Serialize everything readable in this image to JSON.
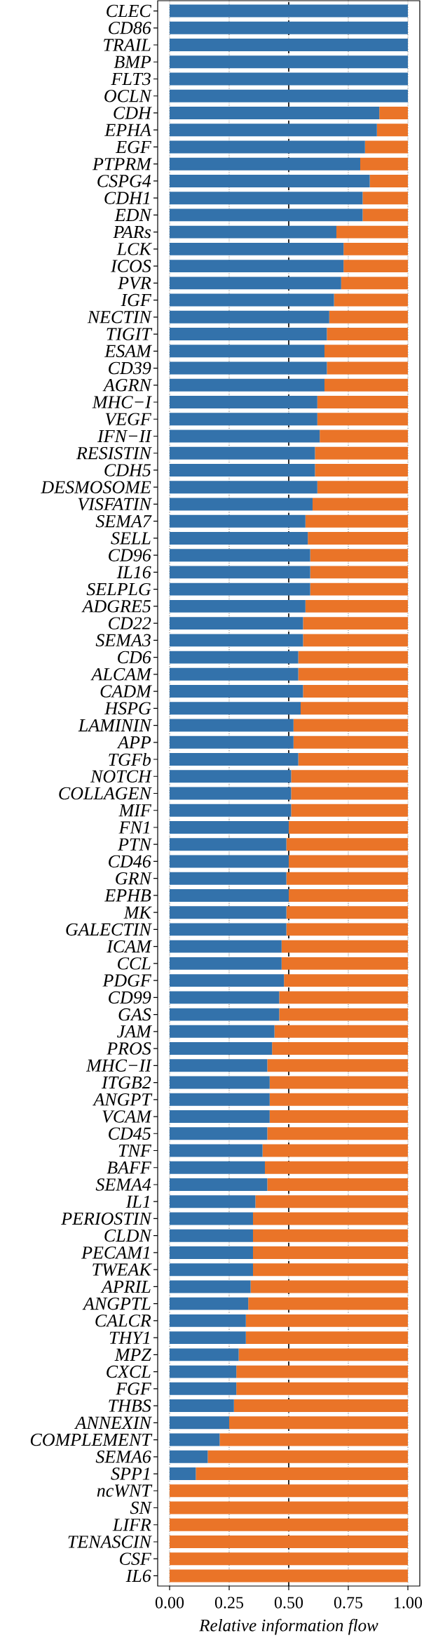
{
  "chart_data": {
    "type": "bar",
    "orientation": "horizontal",
    "stacked": true,
    "xlabel": "Relative information flow",
    "categories": [
      "CLEC",
      "CD86",
      "TRAIL",
      "BMP",
      "FLT3",
      "OCLN",
      "CDH",
      "EPHA",
      "EGF",
      "PTPRM",
      "CSPG4",
      "CDH1",
      "EDN",
      "PARs",
      "LCK",
      "ICOS",
      "PVR",
      "IGF",
      "NECTIN",
      "TIGIT",
      "ESAM",
      "CD39",
      "AGRN",
      "MHC−I",
      "VEGF",
      "IFN−II",
      "RESISTIN",
      "CDH5",
      "DESMOSOME",
      "VISFATIN",
      "SEMA7",
      "SELL",
      "CD96",
      "IL16",
      "SELPLG",
      "ADGRE5",
      "CD22",
      "SEMA3",
      "CD6",
      "ALCAM",
      "CADM",
      "HSPG",
      "LAMININ",
      "APP",
      "TGFb",
      "NOTCH",
      "COLLAGEN",
      "MIF",
      "FN1",
      "PTN",
      "CD46",
      "GRN",
      "EPHB",
      "MK",
      "GALECTIN",
      "ICAM",
      "CCL",
      "PDGF",
      "CD99",
      "GAS",
      "JAM",
      "PROS",
      "MHC−II",
      "ITGB2",
      "ANGPT",
      "VCAM",
      "CD45",
      "TNF",
      "BAFF",
      "SEMA4",
      "IL1",
      "PERIOSTIN",
      "CLDN",
      "PECAM1",
      "TWEAK",
      "APRIL",
      "ANGPTL",
      "CALCR",
      "THY1",
      "MPZ",
      "CXCL",
      "FGF",
      "THBS",
      "ANNEXIN",
      "COMPLEMENT",
      "SEMA6",
      "SPP1",
      "ncWNT",
      "SN",
      "LIFR",
      "TENASCIN",
      "CSF",
      "IL6"
    ],
    "series": [
      {
        "color": "#3372ab",
        "values": [
          1,
          1,
          1,
          1,
          1,
          1,
          0.88,
          0.87,
          0.82,
          0.8,
          0.84,
          0.81,
          0.81,
          0.7,
          0.73,
          0.73,
          0.72,
          0.69,
          0.67,
          0.66,
          0.65,
          0.66,
          0.65,
          0.62,
          0.62,
          0.63,
          0.61,
          0.61,
          0.62,
          0.6,
          0.57,
          0.58,
          0.59,
          0.59,
          0.59,
          0.57,
          0.56,
          0.56,
          0.54,
          0.54,
          0.56,
          0.55,
          0.52,
          0.52,
          0.54,
          0.51,
          0.51,
          0.51,
          0.5,
          0.49,
          0.5,
          0.49,
          0.5,
          0.49,
          0.49,
          0.47,
          0.47,
          0.48,
          0.46,
          0.46,
          0.44,
          0.43,
          0.41,
          0.42,
          0.42,
          0.42,
          0.41,
          0.39,
          0.4,
          0.41,
          0.36,
          0.35,
          0.35,
          0.35,
          0.35,
          0.34,
          0.33,
          0.32,
          0.32,
          0.29,
          0.28,
          0.28,
          0.27,
          0.25,
          0.21,
          0.16,
          0.11,
          0,
          0,
          0,
          0,
          0,
          0
        ]
      },
      {
        "color": "#ea7428",
        "values": [
          0,
          0,
          0,
          0,
          0,
          0,
          0.12,
          0.13,
          0.18,
          0.2,
          0.16,
          0.19,
          0.19,
          0.3,
          0.27,
          0.27,
          0.28,
          0.31,
          0.33,
          0.34,
          0.35,
          0.34,
          0.35,
          0.38,
          0.38,
          0.37,
          0.39,
          0.39,
          0.38,
          0.4,
          0.43,
          0.42,
          0.41,
          0.41,
          0.41,
          0.43,
          0.44,
          0.44,
          0.46,
          0.46,
          0.44,
          0.45,
          0.48,
          0.48,
          0.46,
          0.49,
          0.49,
          0.49,
          0.5,
          0.51,
          0.5,
          0.51,
          0.5,
          0.51,
          0.51,
          0.53,
          0.53,
          0.52,
          0.54,
          0.54,
          0.56,
          0.57,
          0.59,
          0.58,
          0.58,
          0.58,
          0.59,
          0.61,
          0.6,
          0.59,
          0.64,
          0.65,
          0.65,
          0.65,
          0.65,
          0.66,
          0.67,
          0.68,
          0.68,
          0.71,
          0.72,
          0.72,
          0.73,
          0.75,
          0.79,
          0.84,
          0.89,
          1,
          1,
          1,
          1,
          1,
          1
        ]
      }
    ],
    "xlim": [
      -0.05,
      1.05
    ],
    "xticks": [
      {
        "value": 0,
        "label": "0.00"
      },
      {
        "value": 0.25,
        "label": "0.25"
      },
      {
        "value": 0.5,
        "label": "0.50"
      },
      {
        "value": 0.75,
        "label": "0.75"
      },
      {
        "value": 1,
        "label": "1.00"
      }
    ],
    "grid": "x",
    "ref_lines": [
      {
        "axis": "x",
        "value": 0.5,
        "color": "#000000",
        "line_style": "dashed"
      }
    ]
  }
}
